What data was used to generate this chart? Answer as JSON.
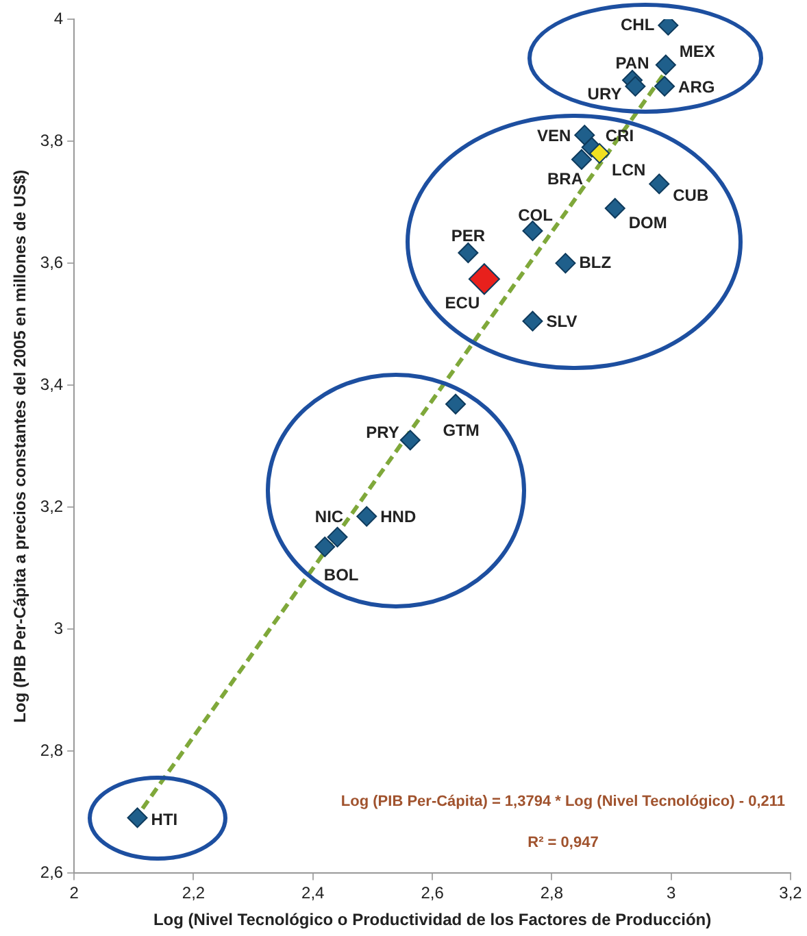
{
  "chart_data": {
    "type": "scatter",
    "xlabel": "Log (Nivel Tecnológico o Productividad de los Factores de Producción)",
    "ylabel": "Log (PIB Per-Cápita a precios constantes del 2005 en millones de US$)",
    "xlim": [
      2,
      3.2
    ],
    "xticks": [
      2,
      {
        "value": 2.2,
        "label": "2,2"
      },
      {
        "value": 2.4,
        "label": "2,4"
      },
      {
        "value": 2.6,
        "label": "2,6"
      },
      {
        "value": 2.8,
        "label": "2,8"
      },
      3,
      {
        "value": 3.2,
        "label": "3,2"
      }
    ],
    "ylim": [
      2.6,
      4
    ],
    "yticks": [
      {
        "value": 2.6,
        "label": "2,6"
      },
      {
        "value": 2.8,
        "label": "2,8"
      },
      3,
      {
        "value": 3.2,
        "label": "3,2"
      },
      {
        "value": 3.4,
        "label": "3,4"
      },
      {
        "value": 3.6,
        "label": "3,6"
      },
      {
        "value": 3.8,
        "label": "3,8"
      },
      4
    ],
    "grid": false,
    "legend": false,
    "marker": "diamond",
    "series": [
      {
        "type": "line",
        "color": "#7fa83a",
        "line_style": "dashed",
        "marker": "none",
        "x": [
          2.1,
          2.99
        ],
        "values": [
          2.686,
          3.913
        ]
      },
      {
        "color": "#1f5f8b",
        "x": [
          2.995,
          2.991,
          2.935,
          2.94,
          2.989,
          2.855,
          2.867,
          2.88,
          2.85,
          2.98,
          2.906,
          2.768,
          2.66,
          2.823,
          2.768,
          2.639,
          2.563,
          2.441,
          2.49,
          2.42,
          2.106
        ],
        "values": [
          3.99,
          3.925,
          3.9,
          3.89,
          3.89,
          3.81,
          3.79,
          3.78,
          3.77,
          3.73,
          3.69,
          3.653,
          3.617,
          3.6,
          3.505,
          3.369,
          3.31,
          3.151,
          3.185,
          3.135,
          2.691
        ],
        "colors": [
          "#1f5f8b",
          "#1f5f8b",
          "#1f5f8b",
          "#1f5f8b",
          "#1f5f8b",
          "#1f5f8b",
          "#1f5f8b",
          "#f0e020",
          "#1f5f8b",
          "#1f5f8b",
          "#1f5f8b",
          "#1f5f8b",
          "#1f5f8b",
          "#1f5f8b",
          "#1f5f8b",
          "#1f5f8b",
          "#1f5f8b",
          "#1f5f8b",
          "#1f5f8b",
          "#1f5f8b",
          "#1f5f8b"
        ]
      },
      {
        "color": "#e8201c",
        "x": [
          2.687
        ],
        "values": [
          3.574
        ]
      }
    ],
    "annotations": [
      {
        "text": "CHL",
        "x": 2.995,
        "y": 3.99
      },
      {
        "text": "MEX",
        "x": 2.991,
        "y": 3.925
      },
      {
        "text": "PAN",
        "x": 2.935,
        "y": 3.9
      },
      {
        "text": "URY",
        "x": 2.94,
        "y": 3.89
      },
      {
        "text": "ARG",
        "x": 2.989,
        "y": 3.89
      },
      {
        "text": "VEN",
        "x": 2.855,
        "y": 3.81
      },
      {
        "text": "CRI",
        "x": 2.867,
        "y": 3.79
      },
      {
        "text": "LCN",
        "x": 2.88,
        "y": 3.78
      },
      {
        "text": "BRA",
        "x": 2.85,
        "y": 3.77
      },
      {
        "text": "CUB",
        "x": 2.98,
        "y": 3.73
      },
      {
        "text": "DOM",
        "x": 2.906,
        "y": 3.69
      },
      {
        "text": "COL",
        "x": 2.768,
        "y": 3.653
      },
      {
        "text": "PER",
        "x": 2.66,
        "y": 3.617
      },
      {
        "text": "ECU",
        "x": 2.687,
        "y": 3.574
      },
      {
        "text": "BLZ",
        "x": 2.823,
        "y": 3.6
      },
      {
        "text": "SLV",
        "x": 2.768,
        "y": 3.505
      },
      {
        "text": "GTM",
        "x": 2.639,
        "y": 3.369
      },
      {
        "text": "PRY",
        "x": 2.563,
        "y": 3.31
      },
      {
        "text": "NIC",
        "x": 2.441,
        "y": 3.151
      },
      {
        "text": "HND",
        "x": 2.49,
        "y": 3.185
      },
      {
        "text": "BOL",
        "x": 2.42,
        "y": 3.135
      },
      {
        "text": "HTI",
        "x": 2.106,
        "y": 2.691
      },
      "Log (PIB Per-Cápita) = 1,3794 * Log (Nivel Tecnológico) - 0,211",
      "R² = 0,947"
    ]
  }
}
